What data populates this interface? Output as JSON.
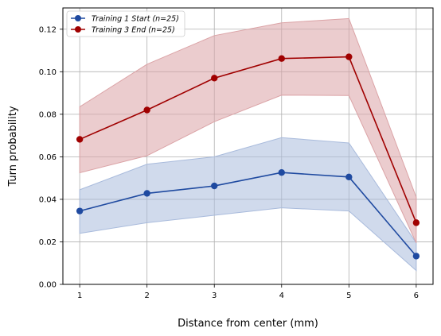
{
  "chart_data": {
    "type": "line",
    "xlabel": "Distance from center (mm)",
    "ylabel": "Turn probability",
    "x": [
      1,
      2,
      3,
      4,
      5,
      6
    ],
    "xlim": [
      0.75,
      6.25
    ],
    "ylim": [
      0,
      0.13
    ],
    "xticks": [
      "1",
      "2",
      "3",
      "4",
      "5",
      "6"
    ],
    "yticks": [
      "0.00",
      "0.02",
      "0.04",
      "0.06",
      "0.08",
      "0.10",
      "0.12"
    ],
    "grid": true,
    "legend_position": "top-left",
    "series": [
      {
        "name": "Training 1 Start (n=25)",
        "color": "#1f4aa0",
        "band_color": "#a9bbdc",
        "values": [
          0.0345,
          0.0428,
          0.0463,
          0.0526,
          0.0505,
          0.0133
        ],
        "lower": [
          0.024,
          0.029,
          0.0325,
          0.036,
          0.0345,
          0.0065
        ],
        "upper": [
          0.0445,
          0.0565,
          0.06,
          0.069,
          0.0665,
          0.0195
        ]
      },
      {
        "name": "Training 3 End (n=25)",
        "color": "#a00000",
        "band_color": "#dba3a6",
        "values": [
          0.0682,
          0.082,
          0.097,
          0.1062,
          0.107,
          0.029
        ],
        "lower": [
          0.0525,
          0.0605,
          0.0765,
          0.089,
          0.0888,
          0.0195
        ],
        "upper": [
          0.0835,
          0.1035,
          0.117,
          0.123,
          0.125,
          0.041
        ]
      }
    ]
  }
}
